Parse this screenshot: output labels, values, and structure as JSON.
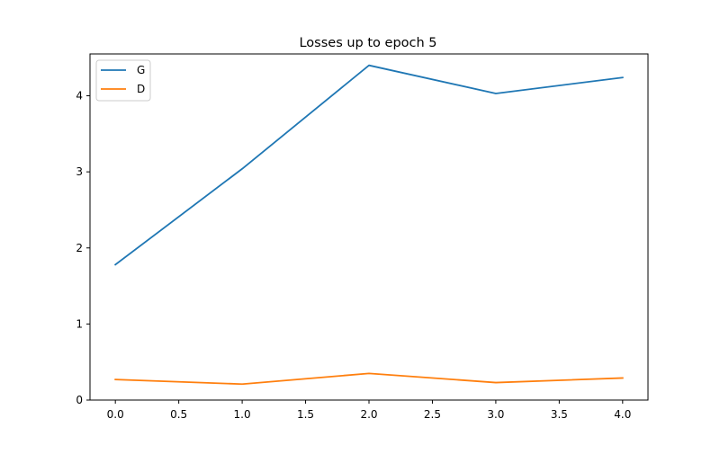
{
  "chart_data": {
    "type": "line",
    "title": "Losses up to epoch 5",
    "xlabel": "",
    "ylabel": "",
    "x": [
      0,
      1,
      2,
      3,
      4
    ],
    "series": [
      {
        "name": "G",
        "color": "#1f77b4",
        "values": [
          1.78,
          3.04,
          4.4,
          4.03,
          4.24
        ]
      },
      {
        "name": "D",
        "color": "#ff7f0e",
        "values": [
          0.27,
          0.21,
          0.35,
          0.23,
          0.29
        ]
      }
    ],
    "xlim": [
      -0.2,
      4.2
    ],
    "ylim": [
      0,
      4.55
    ],
    "xticks": [
      0.0,
      0.5,
      1.0,
      1.5,
      2.0,
      2.5,
      3.0,
      3.5,
      4.0
    ],
    "xtick_labels": [
      "0.0",
      "0.5",
      "1.0",
      "1.5",
      "2.0",
      "2.5",
      "3.0",
      "3.5",
      "4.0"
    ],
    "yticks": [
      0,
      1,
      2,
      3,
      4
    ],
    "ytick_labels": [
      "0",
      "1",
      "2",
      "3",
      "4"
    ],
    "grid": false,
    "legend_position": "top-left"
  }
}
